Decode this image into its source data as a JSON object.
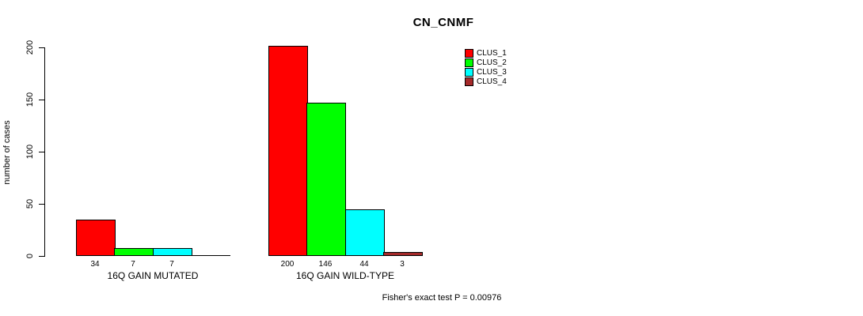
{
  "title": "CN_CNMF",
  "y_axis": {
    "label": "number of cases"
  },
  "footer_annotation": "Fisher's exact test P = 0.00976",
  "chart_data": {
    "type": "bar",
    "title": "CN_CNMF",
    "xlabel": "",
    "ylabel": "number of cases",
    "ylim": [
      0,
      200
    ],
    "yticks": [
      0,
      50,
      100,
      150,
      200
    ],
    "grid": false,
    "legend_position": "top-right",
    "categories": [
      "16Q GAIN MUTATED",
      "16Q GAIN WILD-TYPE"
    ],
    "series": [
      {
        "name": "CLUS_1",
        "color": "#ff0000",
        "values": [
          34,
          200
        ]
      },
      {
        "name": "CLUS_2",
        "color": "#00ff00",
        "values": [
          7,
          146
        ]
      },
      {
        "name": "CLUS_3",
        "color": "#00ffff",
        "values": [
          7,
          44
        ]
      },
      {
        "name": "CLUS_4",
        "color": "#a52a2a",
        "values": [
          0,
          3
        ]
      }
    ],
    "bar_value_labels": [
      [
        "34",
        "7",
        "7",
        ""
      ],
      [
        "200",
        "146",
        "44",
        "3"
      ]
    ],
    "annotation": "Fisher's exact test P = 0.00976"
  }
}
